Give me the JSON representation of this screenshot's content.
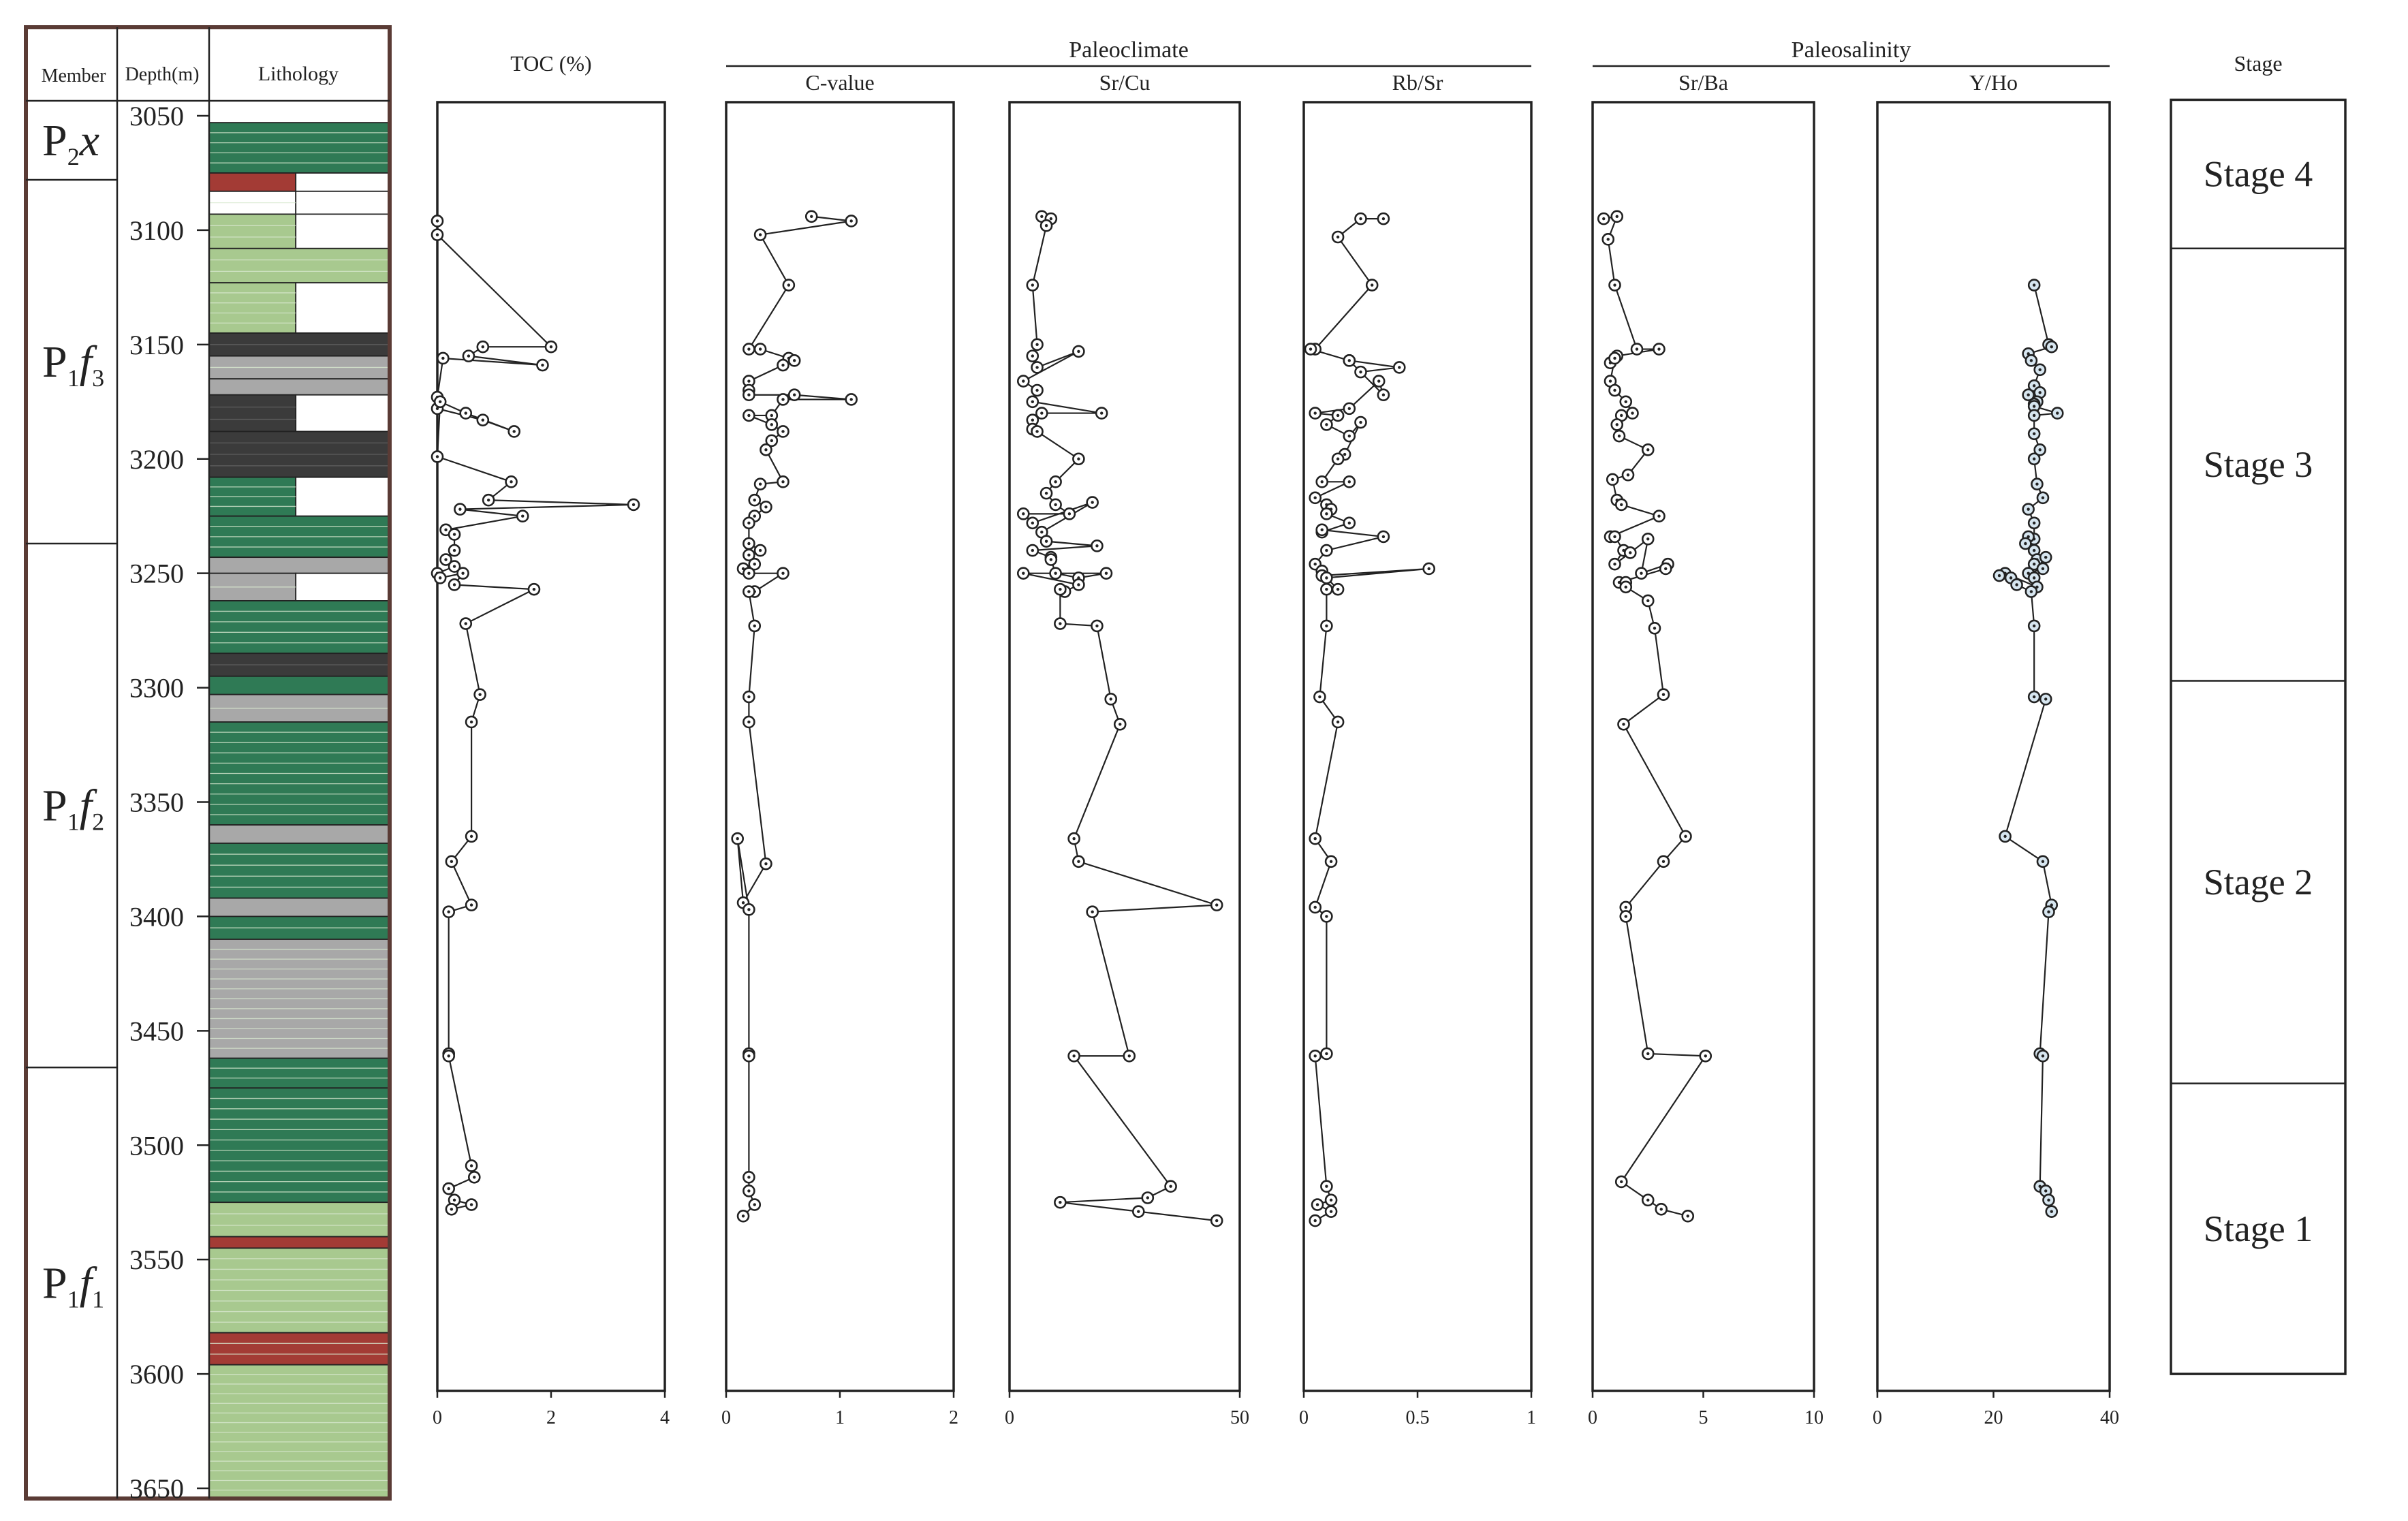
{
  "depth_axis": {
    "min": 3050,
    "max": 3650,
    "ticks": [
      3050,
      3100,
      3150,
      3200,
      3250,
      3300,
      3350,
      3400,
      3450,
      3500,
      3550,
      3600,
      3650
    ],
    "label": "Depth(m)"
  },
  "column_headers": {
    "member": "Member",
    "depth": "Depth(m)",
    "lithology": "Lithology",
    "stage": "Stage"
  },
  "members": [
    {
      "main": "P",
      "sub": "2",
      "italic": "x",
      "sub2": "",
      "top": 3043,
      "bottom": 3078
    },
    {
      "main": "P",
      "sub": "1",
      "italic": "f",
      "sub2": "3",
      "top": 3078,
      "bottom": 3237
    },
    {
      "main": "P",
      "sub": "1",
      "italic": "f",
      "sub2": "2",
      "top": 3237,
      "bottom": 3466
    },
    {
      "main": "P",
      "sub": "1",
      "italic": "f",
      "sub2": "1",
      "top": 3466,
      "bottom": 3655
    }
  ],
  "stages": [
    {
      "label": "Stage 4",
      "top": 3043,
      "bottom": 3108
    },
    {
      "label": "Stage 3",
      "top": 3108,
      "bottom": 3297
    },
    {
      "label": "Stage 2",
      "top": 3297,
      "bottom": 3473
    },
    {
      "label": "Stage 1",
      "top": 3473,
      "bottom": 3600
    }
  ],
  "lithology": [
    {
      "top": 3053,
      "bottom": 3075,
      "color": "#2f7a55",
      "full": true
    },
    {
      "top": 3075,
      "bottom": 3083,
      "color": "#a33b35",
      "full": false
    },
    {
      "top": 3083,
      "bottom": 3093,
      "color": "#ffffff",
      "full": false
    },
    {
      "top": 3093,
      "bottom": 3108,
      "color": "#a8c98f",
      "full": false
    },
    {
      "top": 3108,
      "bottom": 3123,
      "color": "#a8c98f",
      "full": true
    },
    {
      "top": 3123,
      "bottom": 3145,
      "color": "#a8c98f",
      "full": false
    },
    {
      "top": 3145,
      "bottom": 3155,
      "color": "#3b3b3b",
      "full": true
    },
    {
      "top": 3155,
      "bottom": 3165,
      "color": "#a8a8a8",
      "full": true
    },
    {
      "top": 3165,
      "bottom": 3172,
      "color": "#a8a8a8",
      "full": true
    },
    {
      "top": 3172,
      "bottom": 3188,
      "color": "#3b3b3b",
      "full": false
    },
    {
      "top": 3188,
      "bottom": 3208,
      "color": "#3b3b3b",
      "full": true
    },
    {
      "top": 3208,
      "bottom": 3225,
      "color": "#2f7a55",
      "full": false
    },
    {
      "top": 3225,
      "bottom": 3243,
      "color": "#2f7a55",
      "full": true
    },
    {
      "top": 3243,
      "bottom": 3250,
      "color": "#a8a8a8",
      "full": true
    },
    {
      "top": 3250,
      "bottom": 3262,
      "color": "#a8a8a8",
      "full": false
    },
    {
      "top": 3262,
      "bottom": 3285,
      "color": "#2f7a55",
      "full": true
    },
    {
      "top": 3285,
      "bottom": 3295,
      "color": "#3b3b3b",
      "full": true
    },
    {
      "top": 3295,
      "bottom": 3303,
      "color": "#2f7a55",
      "full": true
    },
    {
      "top": 3303,
      "bottom": 3315,
      "color": "#a8a8a8",
      "full": true
    },
    {
      "top": 3315,
      "bottom": 3360,
      "color": "#2f7a55",
      "full": true
    },
    {
      "top": 3360,
      "bottom": 3368,
      "color": "#a8a8a8",
      "full": true
    },
    {
      "top": 3368,
      "bottom": 3392,
      "color": "#2f7a55",
      "full": true
    },
    {
      "top": 3392,
      "bottom": 3400,
      "color": "#a8a8a8",
      "full": true
    },
    {
      "top": 3400,
      "bottom": 3410,
      "color": "#2f7a55",
      "full": true
    },
    {
      "top": 3410,
      "bottom": 3462,
      "color": "#a8a8a8",
      "full": true
    },
    {
      "top": 3462,
      "bottom": 3475,
      "color": "#2f7a55",
      "full": true
    },
    {
      "top": 3475,
      "bottom": 3525,
      "color": "#2f7a55",
      "full": true
    },
    {
      "top": 3525,
      "bottom": 3540,
      "color": "#a8c98f",
      "full": true
    },
    {
      "top": 3540,
      "bottom": 3545,
      "color": "#a33b35",
      "full": true
    },
    {
      "top": 3545,
      "bottom": 3582,
      "color": "#a8c98f",
      "full": true
    },
    {
      "top": 3582,
      "bottom": 3596,
      "color": "#a33b35",
      "full": true
    },
    {
      "top": 3596,
      "bottom": 3655,
      "color": "#a8c98f",
      "full": true
    }
  ],
  "groups": [
    {
      "label": "Paleoclimate",
      "from": 1,
      "to": 3
    },
    {
      "label": "Paleosalinity",
      "from": 4,
      "to": 5
    }
  ],
  "chart_data": [
    {
      "type": "line",
      "title": "TOC (%)",
      "xlim": [
        0,
        4
      ],
      "ticks": [
        "0",
        "2",
        "4"
      ],
      "series": [
        {
          "name": "TOC (%)",
          "x": [
            0.0,
            0.0,
            2.0,
            0.8,
            0.55,
            1.85,
            0.1,
            0.0,
            0.0,
            0.8,
            1.35,
            0.5,
            0.05,
            0.0,
            1.3,
            0.9,
            3.45,
            0.4,
            1.5,
            0.15,
            0.3,
            0.3,
            0.15,
            0.3,
            0.0,
            0.05,
            0.45,
            0.3,
            1.7,
            0.5,
            0.75,
            0.6,
            0.6,
            0.25,
            0.6,
            0.2,
            0.2,
            0.2,
            0.6,
            0.65,
            0.2,
            0.3,
            0.6,
            0.25
          ],
          "y": [
            3096,
            3102,
            3151,
            3151,
            3155,
            3159,
            3156,
            3173,
            3178,
            3183,
            3188,
            3180,
            3175,
            3199,
            3210,
            3218,
            3220,
            3222,
            3225,
            3231,
            3233,
            3240,
            3244,
            3247,
            3250,
            3252,
            3250,
            3255,
            3257,
            3272,
            3303,
            3315,
            3365,
            3376,
            3395,
            3398,
            3460,
            3461,
            3509,
            3514,
            3519,
            3524,
            3526,
            3528
          ]
        }
      ]
    },
    {
      "type": "line",
      "title": "C-value",
      "xlim": [
        0,
        2
      ],
      "ticks": [
        "0",
        "1",
        "2"
      ],
      "series": [
        {
          "name": "C-value",
          "x": [
            0.75,
            1.1,
            0.3,
            0.55,
            0.2,
            0.3,
            0.55,
            0.6,
            0.5,
            0.2,
            0.2,
            0.2,
            0.6,
            1.1,
            0.5,
            0.4,
            0.2,
            0.4,
            0.5,
            0.4,
            0.35,
            0.5,
            0.3,
            0.25,
            0.35,
            0.25,
            0.2,
            0.2,
            0.3,
            0.2,
            0.25,
            0.15,
            0.2,
            0.5,
            0.25,
            0.2,
            0.25,
            0.2,
            0.2,
            0.35,
            0.15,
            0.1,
            0.2,
            0.2,
            0.2,
            0.2,
            0.2,
            0.25,
            0.15
          ],
          "y": [
            3094,
            3096,
            3102,
            3124,
            3152,
            3152,
            3156,
            3157,
            3159,
            3166,
            3170,
            3172,
            3172,
            3174,
            3174,
            3181,
            3181,
            3185,
            3188,
            3192,
            3196,
            3210,
            3211,
            3218,
            3221,
            3225,
            3228,
            3237,
            3240,
            3242,
            3246,
            3248,
            3250,
            3250,
            3258,
            3258,
            3273,
            3304,
            3315,
            3377,
            3394,
            3366,
            3397,
            3460,
            3461,
            3514,
            3520,
            3526,
            3531
          ]
        }
      ]
    },
    {
      "type": "line",
      "title": "Sr/Cu",
      "xlim": [
        0,
        50
      ],
      "ticks": [
        "0",
        "50"
      ],
      "series": [
        {
          "name": "Sr/Cu",
          "x": [
            7,
            9,
            8,
            5,
            6,
            5,
            6,
            15,
            3,
            6,
            5,
            20,
            7,
            5,
            5,
            6,
            15,
            10,
            8,
            10,
            13,
            3,
            5,
            18,
            7,
            8,
            19,
            5,
            9,
            9,
            10,
            15,
            21,
            3,
            15,
            12,
            11,
            11,
            19,
            22,
            24,
            14,
            15,
            45,
            18,
            26,
            14,
            35,
            30,
            11,
            28,
            45
          ],
          "y": [
            3094,
            3095,
            3098,
            3124,
            3150,
            3155,
            3160,
            3153,
            3166,
            3170,
            3175,
            3180,
            3180,
            3183,
            3187,
            3188,
            3200,
            3210,
            3215,
            3220,
            3224,
            3224,
            3228,
            3219,
            3232,
            3236,
            3238,
            3240,
            3243,
            3244,
            3250,
            3252,
            3250,
            3250,
            3255,
            3258,
            3257,
            3272,
            3273,
            3305,
            3316,
            3366,
            3376,
            3395,
            3398,
            3461,
            3461,
            3518,
            3523,
            3525,
            3529,
            3533
          ]
        }
      ]
    },
    {
      "type": "line",
      "title": "Rb/Sr",
      "xlim": [
        0,
        1
      ],
      "ticks": [
        "0",
        "0.5",
        "1"
      ],
      "series": [
        {
          "name": "Rb/Sr",
          "x": [
            0.35,
            0.25,
            0.15,
            0.3,
            0.05,
            0.03,
            0.2,
            0.42,
            0.25,
            0.2,
            0.35,
            0.33,
            0.2,
            0.05,
            0.15,
            0.1,
            0.2,
            0.25,
            0.18,
            0.15,
            0.08,
            0.2,
            0.05,
            0.1,
            0.12,
            0.1,
            0.2,
            0.08,
            0.08,
            0.35,
            0.1,
            0.05,
            0.08,
            0.08,
            0.55,
            0.1,
            0.15,
            0.1,
            0.1,
            0.07,
            0.15,
            0.05,
            0.12,
            0.05,
            0.1,
            0.1,
            0.05,
            0.1,
            0.12,
            0.06,
            0.12,
            0.05
          ],
          "y": [
            3095,
            3095,
            3103,
            3124,
            3152,
            3152,
            3157,
            3160,
            3162,
            3157,
            3172,
            3166,
            3178,
            3180,
            3181,
            3185,
            3190,
            3184,
            3198,
            3200,
            3210,
            3210,
            3217,
            3220,
            3222,
            3224,
            3228,
            3232,
            3231,
            3234,
            3240,
            3246,
            3249,
            3251,
            3248,
            3252,
            3257,
            3257,
            3273,
            3304,
            3315,
            3366,
            3376,
            3396,
            3400,
            3460,
            3461,
            3518,
            3524,
            3526,
            3529,
            3533
          ]
        }
      ]
    },
    {
      "type": "line",
      "title": "Sr/Ba",
      "xlim": [
        0,
        10
      ],
      "ticks": [
        "0",
        "5",
        "10"
      ],
      "series": [
        {
          "name": "Sr/Ba",
          "x": [
            0.5,
            1.1,
            0.7,
            1.0,
            2.0,
            3.0,
            1.1,
            0.8,
            1.0,
            0.8,
            1.0,
            1.5,
            1.8,
            1.3,
            1.1,
            1.2,
            2.5,
            1.6,
            0.9,
            1.1,
            1.3,
            3.0,
            0.8,
            1.0,
            1.4,
            1.0,
            1.7,
            2.5,
            2.2,
            3.4,
            3.3,
            1.2,
            1.5,
            1.5,
            2.5,
            2.8,
            3.2,
            1.4,
            4.2,
            3.2,
            1.5,
            1.5,
            2.5,
            5.1,
            1.3,
            2.5,
            3.1,
            4.3
          ],
          "y": [
            3095,
            3094,
            3104,
            3124,
            3152,
            3152,
            3155,
            3158,
            3156,
            3166,
            3170,
            3175,
            3180,
            3181,
            3185,
            3190,
            3196,
            3207,
            3209,
            3218,
            3220,
            3225,
            3234,
            3234,
            3240,
            3246,
            3241,
            3235,
            3250,
            3246,
            3248,
            3254,
            3254,
            3256,
            3262,
            3274,
            3303,
            3316,
            3365,
            3376,
            3396,
            3400,
            3460,
            3461,
            3516,
            3524,
            3528,
            3531
          ]
        }
      ]
    },
    {
      "type": "line",
      "title": "Y/Ho",
      "xlim": [
        0,
        40
      ],
      "ticks": [
        "0",
        "20",
        "40"
      ],
      "series": [
        {
          "name": "Y/Ho",
          "x": [
            27,
            29.5,
            30,
            26,
            26.5,
            28,
            27,
            28,
            26,
            27.5,
            27,
            27,
            31,
            27,
            27,
            28,
            27,
            27.5,
            28.5,
            26,
            27,
            27,
            26,
            25.5,
            27,
            27.5,
            27,
            29,
            28.5,
            26,
            27,
            27.5,
            22,
            21,
            23,
            24,
            26.5,
            27,
            27,
            29,
            22,
            28.5,
            30,
            29.5,
            28,
            28.5,
            28,
            29,
            29.5,
            30
          ],
          "y": [
            3124,
            3150,
            3151,
            3154,
            3157,
            3161,
            3168,
            3171,
            3172,
            3175,
            3176,
            3177,
            3180,
            3181,
            3189,
            3196,
            3200,
            3211,
            3217,
            3222,
            3228,
            3235,
            3234,
            3237,
            3240,
            3244,
            3246,
            3243,
            3248,
            3250,
            3252,
            3256,
            3250,
            3251,
            3252,
            3255,
            3258,
            3273,
            3304,
            3305,
            3365,
            3376,
            3395,
            3398,
            3460,
            3461,
            3518,
            3520,
            3524,
            3529
          ]
        }
      ]
    }
  ]
}
